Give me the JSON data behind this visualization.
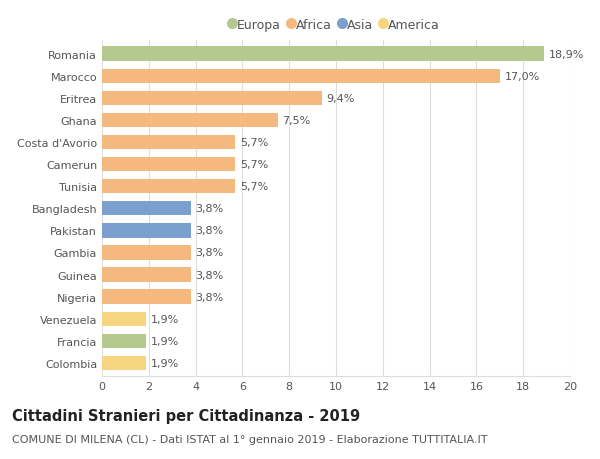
{
  "countries": [
    "Romania",
    "Marocco",
    "Eritrea",
    "Ghana",
    "Costa d'Avorio",
    "Camerun",
    "Tunisia",
    "Bangladesh",
    "Pakistan",
    "Gambia",
    "Guinea",
    "Nigeria",
    "Venezuela",
    "Francia",
    "Colombia"
  ],
  "values": [
    18.9,
    17.0,
    9.4,
    7.5,
    5.7,
    5.7,
    5.7,
    3.8,
    3.8,
    3.8,
    3.8,
    3.8,
    1.9,
    1.9,
    1.9
  ],
  "labels": [
    "18,9%",
    "17,0%",
    "9,4%",
    "7,5%",
    "5,7%",
    "5,7%",
    "5,7%",
    "3,8%",
    "3,8%",
    "3,8%",
    "3,8%",
    "3,8%",
    "1,9%",
    "1,9%",
    "1,9%"
  ],
  "continents": [
    "Europa",
    "Africa",
    "Africa",
    "Africa",
    "Africa",
    "Africa",
    "Africa",
    "Asia",
    "Asia",
    "Africa",
    "Africa",
    "Africa",
    "America",
    "Europa",
    "America"
  ],
  "colors": {
    "Europa": "#b5c98e",
    "Africa": "#f5b97f",
    "Asia": "#7b9fcf",
    "America": "#f5d57f"
  },
  "legend_order": [
    "Europa",
    "Africa",
    "Asia",
    "America"
  ],
  "xlim": [
    0,
    20
  ],
  "xticks": [
    0,
    2,
    4,
    6,
    8,
    10,
    12,
    14,
    16,
    18,
    20
  ],
  "title": "Cittadini Stranieri per Cittadinanza - 2019",
  "subtitle": "COMUNE DI MILENA (CL) - Dati ISTAT al 1° gennaio 2019 - Elaborazione TUTTITALIA.IT",
  "title_fontsize": 10.5,
  "subtitle_fontsize": 8,
  "label_fontsize": 8,
  "tick_fontsize": 8,
  "legend_fontsize": 9,
  "bar_height": 0.65,
  "background_color": "#ffffff",
  "grid_color": "#dddddd",
  "text_color": "#555555",
  "title_color": "#222222"
}
